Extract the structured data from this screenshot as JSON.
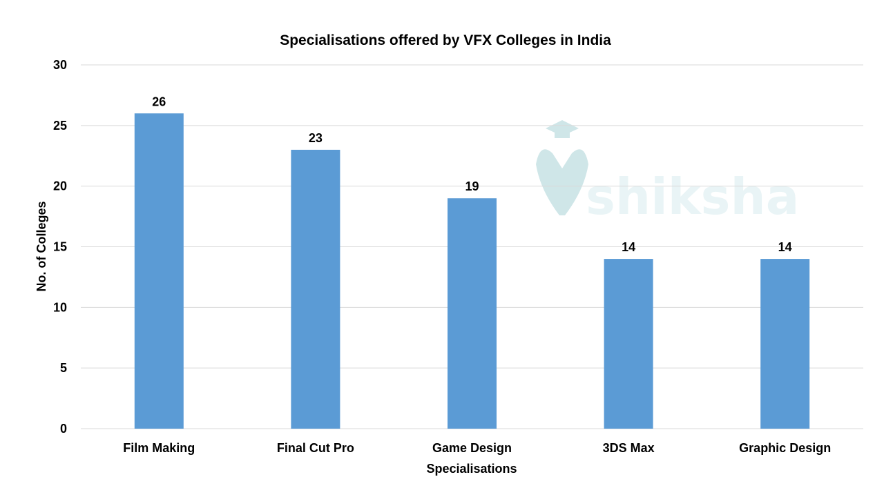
{
  "colors": {
    "bar": "#5b9bd5",
    "watermark_teal": "#a8d3d6",
    "watermark_orange": "#f4c58c"
  },
  "watermark": {
    "text": "shiksha",
    "icon": "graduation-cap-logo-icon"
  },
  "chart_data": {
    "type": "bar",
    "title": "Specialisations offered by VFX Colleges in India",
    "xlabel": "Specialisations",
    "ylabel": "No. of Colleges",
    "categories": [
      "Film Making",
      "Final Cut Pro",
      "Game Design",
      "3DS Max",
      "Graphic Design"
    ],
    "values": [
      26,
      23,
      19,
      14,
      14
    ],
    "ylim": [
      0,
      30
    ],
    "yticks": [
      0,
      5,
      10,
      15,
      20,
      25,
      30
    ],
    "grid": true,
    "legend": "none"
  }
}
